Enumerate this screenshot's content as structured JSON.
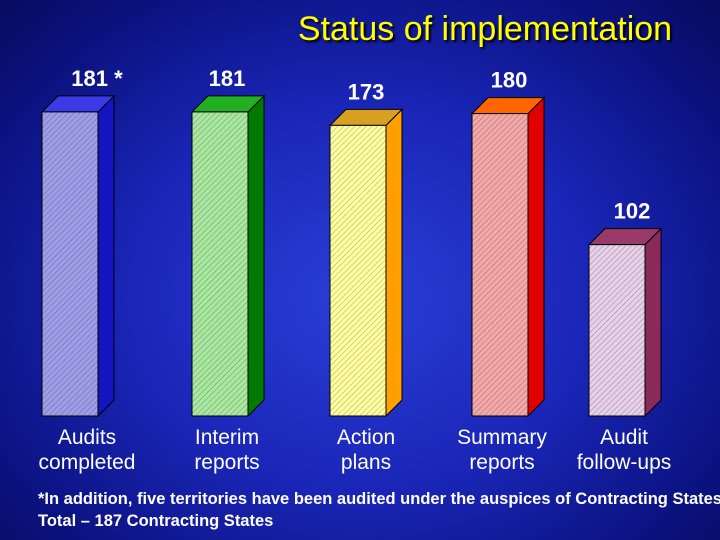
{
  "chart_data": {
    "type": "bar",
    "title": "Status of implementation",
    "categories": [
      [
        "Audits",
        "completed"
      ],
      [
        "Interim",
        "reports"
      ],
      [
        "Action",
        "plans"
      ],
      [
        "Summary",
        "reports"
      ],
      [
        "Audit",
        "follow-ups"
      ]
    ],
    "values": [
      181,
      181,
      173,
      180,
      102
    ],
    "value_labels": [
      "181 *",
      "181",
      "173",
      "180",
      "102"
    ],
    "ylim": [
      0,
      187
    ],
    "grid": false,
    "legend": "none",
    "colors": {
      "front": [
        "#9e9ee8",
        "#a9e8a0",
        "#ffffa0",
        "#f4a8a8",
        "#e8d0e8"
      ],
      "top": [
        "#3a3ae6",
        "#22b022",
        "#d8a020",
        "#ff6600",
        "#9a3a6a"
      ],
      "side": [
        "#1414c0",
        "#007a00",
        "#ffa000",
        "#e00000",
        "#8a2a5a"
      ]
    },
    "footnote_lines": [
      "*In addition, five territories have been audited under the auspices of Contracting States",
      "Total – 187 Contracting States"
    ]
  }
}
